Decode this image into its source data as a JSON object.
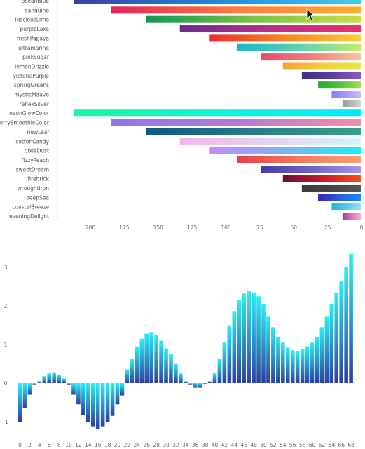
{
  "chart_data": [
    {
      "type": "bar",
      "orientation": "horizontal",
      "x_reversed": true,
      "xlim": [
        0,
        215
      ],
      "xticks": [
        200,
        175,
        150,
        125,
        100,
        75,
        50,
        25,
        0
      ],
      "grid": false,
      "categories": [
        "oceanBlue",
        "sanguine",
        "lusciousLime",
        "purpleLake",
        "freshPapaya",
        "ultramarine",
        "pinkSugar",
        "lemonDrizzle",
        "victoriaPurple",
        "springGreens",
        "mysticMauve",
        "reflexSilver",
        "neonGlowColor",
        "berrySmoothieColor",
        "newLeaf",
        "cottonCandy",
        "pixieDust",
        "fizzyPeach",
        "sweetDream",
        "firebrick",
        "wroughtIron",
        "deepSea",
        "coastalBreeze",
        "eveningDelight"
      ],
      "values": [
        212,
        185,
        159,
        134,
        112,
        92,
        74,
        58,
        44,
        32,
        22,
        14,
        212,
        185,
        159,
        134,
        112,
        92,
        74,
        58,
        44,
        32,
        22,
        14
      ],
      "colors": [
        [
          "#3a3fa8",
          "#1e88d9",
          "#3fd0f0"
        ],
        [
          "#e0245e",
          "#ff7a3c",
          "#f5b030"
        ],
        [
          "#11985a",
          "#7ac143",
          "#c9e04a"
        ],
        [
          "#6b2c91",
          "#b82e8b",
          "#e8316a"
        ],
        [
          "#e62e2d",
          "#f7871f",
          "#f4d03f"
        ],
        [
          "#18b7c8",
          "#5fd0b0",
          "#c6ec6a"
        ],
        [
          "#e84a72",
          "#f27d7d",
          "#f6c6a0"
        ],
        [
          "#f7a23a",
          "#f2d03b",
          "#e4e84a"
        ],
        [
          "#3d2f84",
          "#5b3fa0",
          "#8a5cc6"
        ],
        [
          "#2aa82f",
          "#4fc23a",
          "#a6e04d"
        ],
        [
          "#8a7cf0",
          "#a99cf5",
          "#c6bff8"
        ],
        [
          "#9a9a9a",
          "#b8b8b8",
          "#d6d6d6"
        ],
        [
          "#1cf5a0",
          "#0ef7d5",
          "#00eaff"
        ],
        [
          "#8a78f0",
          "#b57ad6",
          "#f58fa8"
        ],
        [
          "#0c5a7e",
          "#2c7a8a",
          "#3aa08a"
        ],
        [
          "#f3b5e8",
          "#e5d4f4",
          "#d3f4f8"
        ],
        [
          "#c38cf5",
          "#7ab2fa",
          "#12f2fb"
        ],
        [
          "#ea3e4a",
          "#f07a60",
          "#f5a07a"
        ],
        [
          "#4a3aa8",
          "#6f63c8",
          "#ab94e6"
        ],
        [
          "#6e0b3a",
          "#c41b28",
          "#f24f1a"
        ],
        [
          "#3a3a3a",
          "#454545",
          "#555555"
        ],
        [
          "#3d1fb0",
          "#2b5fe0",
          "#1b8cf5"
        ],
        [
          "#1cb5e0",
          "#58c8ea",
          "#9de0f2"
        ],
        [
          "#9b3aa0",
          "#d37ab8",
          "#f5b5c8"
        ]
      ]
    },
    {
      "type": "bar",
      "x": [
        0,
        1,
        2,
        3,
        4,
        5,
        6,
        7,
        8,
        9,
        10,
        11,
        12,
        13,
        14,
        15,
        16,
        17,
        18,
        19,
        20,
        21,
        22,
        23,
        24,
        25,
        26,
        27,
        28,
        29,
        30,
        31,
        32,
        33,
        34,
        35,
        36,
        37,
        38,
        39,
        40,
        41,
        42,
        43,
        44,
        45,
        46,
        47,
        48,
        49,
        50,
        51,
        52,
        53,
        54,
        55,
        56,
        57,
        58,
        59,
        60,
        61,
        62,
        63,
        64,
        65,
        66,
        67,
        68
      ],
      "xticks": [
        0,
        2,
        4,
        6,
        8,
        10,
        12,
        14,
        16,
        18,
        20,
        22,
        24,
        26,
        28,
        30,
        32,
        34,
        36,
        38,
        40,
        42,
        44,
        46,
        48,
        50,
        52,
        54,
        56,
        58,
        60,
        62,
        64,
        66,
        68
      ],
      "values": [
        -1.0,
        -0.65,
        -0.3,
        -0.05,
        0.05,
        0.18,
        0.25,
        0.28,
        0.22,
        0.12,
        -0.05,
        -0.3,
        -0.55,
        -0.82,
        -1.0,
        -1.12,
        -1.18,
        -1.12,
        -1.0,
        -0.85,
        -0.55,
        -0.32,
        0.35,
        0.62,
        0.95,
        1.15,
        1.28,
        1.32,
        1.25,
        1.1,
        0.9,
        0.75,
        0.5,
        0.25,
        0.05,
        -0.05,
        -0.12,
        -0.12,
        -0.02,
        0.05,
        0.25,
        0.62,
        1.05,
        1.5,
        1.85,
        2.15,
        2.32,
        2.38,
        2.35,
        2.25,
        2.05,
        1.72,
        1.45,
        1.2,
        1.05,
        0.92,
        0.85,
        0.82,
        0.88,
        0.95,
        1.05,
        1.2,
        1.45,
        1.72,
        2.05,
        2.35,
        2.65,
        3.02,
        3.35
      ],
      "ylim": [
        -1.4,
        3.5
      ],
      "yticks": [
        -1,
        0,
        1,
        2,
        3
      ],
      "grid": false,
      "colors": {
        "top": "#2af0f5",
        "bottom": "#2a3fa0"
      }
    }
  ]
}
